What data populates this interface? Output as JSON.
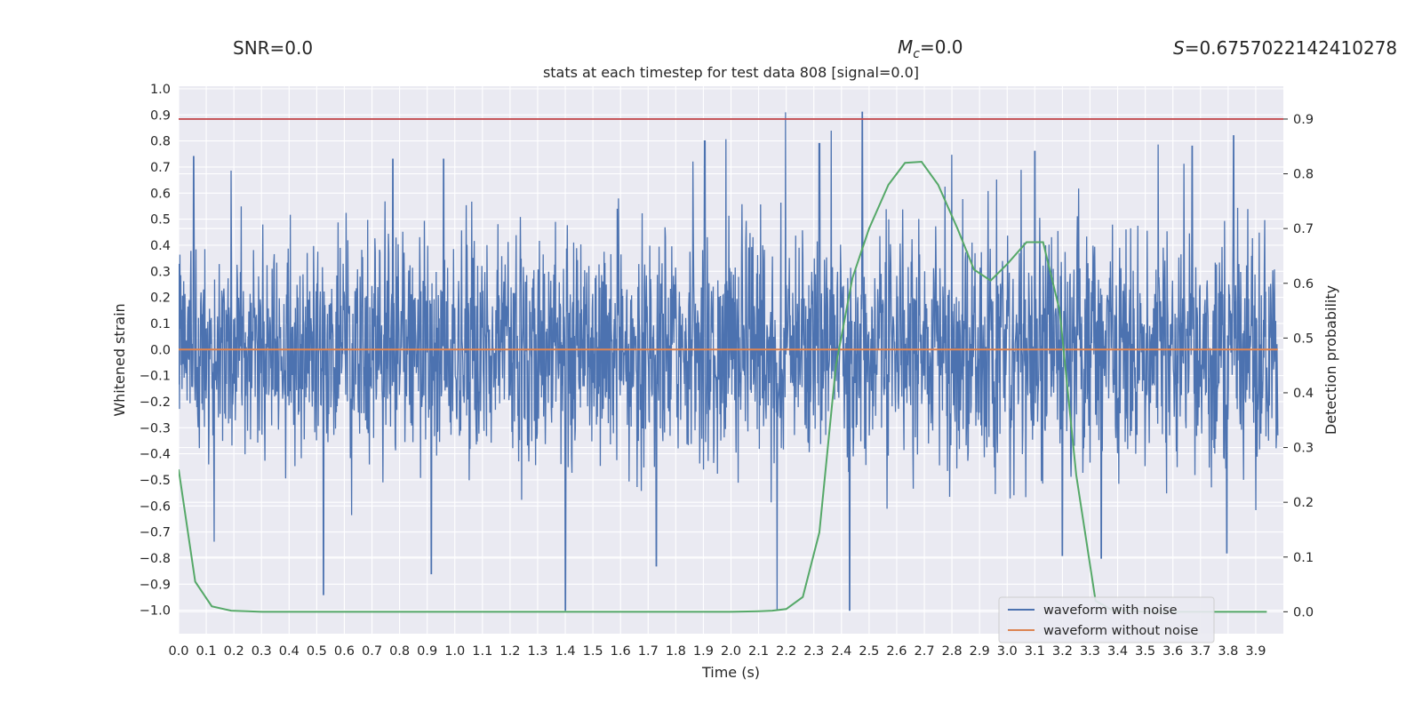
{
  "header": {
    "snr": "SNR=0.0",
    "mc_symbol": "M",
    "mc_sub": "c",
    "mc_value": "=0.0",
    "s_symbol": "S",
    "s_value": "=0.6757022142410278"
  },
  "chart_data": {
    "type": "line",
    "title": "stats at each timestep for test data 808 [signal=0.0]",
    "xlabel": "Time (s)",
    "ylabel_left": "Whitened strain",
    "ylabel_right": "Detection probability",
    "xlim": [
      0.0,
      4.0
    ],
    "ylim_left": [
      -1.09,
      1.01
    ],
    "ylim_right": [
      -0.04,
      0.96
    ],
    "xticks": [
      "0.0",
      "0.1",
      "0.2",
      "0.3",
      "0.4",
      "0.5",
      "0.6",
      "0.7",
      "0.8",
      "0.9",
      "1.0",
      "1.1",
      "1.2",
      "1.3",
      "1.4",
      "1.5",
      "1.6",
      "1.7",
      "1.8",
      "1.9",
      "2.0",
      "2.1",
      "2.2",
      "2.3",
      "2.4",
      "2.5",
      "2.6",
      "2.7",
      "2.8",
      "2.9",
      "3.0",
      "3.1",
      "3.2",
      "3.3",
      "3.4",
      "3.5",
      "3.6",
      "3.7",
      "3.8",
      "3.9"
    ],
    "yticks_left": [
      "1.0",
      "0.9",
      "0.8",
      "0.7",
      "0.6",
      "0.5",
      "0.4",
      "0.3",
      "0.2",
      "0.1",
      "0.0",
      "−0.1",
      "−0.2",
      "−0.3",
      "−0.4",
      "−0.5",
      "−0.6",
      "−0.7",
      "−0.8",
      "−0.9",
      "−1.0"
    ],
    "yticks_right": [
      "0.9",
      "0.8",
      "0.7",
      "0.6",
      "0.5",
      "0.4",
      "0.3",
      "0.2",
      "0.1",
      "0.0"
    ],
    "threshold": {
      "value": 0.9,
      "axis": "right",
      "color": "#c44e52"
    },
    "series": [
      {
        "name": "waveform with noise",
        "axis": "left",
        "color": "#4c72b0",
        "description_values": "dense whitened noise, roughly within -1.0 to 0.92",
        "peaks": [
          {
            "x": 2.475,
            "y": 0.91
          },
          {
            "x": 3.82,
            "y": 0.82
          },
          {
            "x": 1.905,
            "y": 0.8
          },
          {
            "x": 2.32,
            "y": 0.79
          },
          {
            "x": 0.055,
            "y": 0.74
          },
          {
            "x": 0.96,
            "y": 0.73
          },
          {
            "x": 0.775,
            "y": 0.73
          },
          {
            "x": 3.67,
            "y": 0.78
          },
          {
            "x": 3.1,
            "y": 0.76
          },
          {
            "x": 1.4,
            "y": -1.0
          },
          {
            "x": 2.43,
            "y": -1.0
          },
          {
            "x": 0.525,
            "y": -0.94
          },
          {
            "x": 0.915,
            "y": -0.86
          },
          {
            "x": 1.73,
            "y": -0.83
          },
          {
            "x": 3.795,
            "y": -0.78
          },
          {
            "x": 3.2,
            "y": -0.79
          },
          {
            "x": 3.34,
            "y": -0.8
          }
        ]
      },
      {
        "name": "waveform without noise",
        "axis": "left",
        "color": "#dd8452",
        "x": [
          0.0,
          3.98
        ],
        "y": [
          0.0,
          0.0
        ]
      },
      {
        "name": "detection probability",
        "axis": "right",
        "color": "#55a868",
        "x": [
          0.0,
          0.06,
          0.12,
          0.19,
          0.25,
          0.3,
          0.5,
          1.0,
          1.5,
          2.0,
          2.1,
          2.15,
          2.2,
          2.26,
          2.32,
          2.38,
          2.44,
          2.5,
          2.57,
          2.63,
          2.69,
          2.75,
          2.82,
          2.88,
          2.94,
          3.0,
          3.07,
          3.13,
          3.19,
          3.25,
          3.32,
          3.38,
          3.5,
          3.7,
          3.9,
          3.94
        ],
        "y": [
          0.26,
          0.055,
          0.01,
          0.002,
          0.001,
          0.0,
          0.0,
          0.0,
          0.0,
          0.0,
          0.001,
          0.002,
          0.005,
          0.027,
          0.145,
          0.45,
          0.61,
          0.7,
          0.78,
          0.82,
          0.822,
          0.78,
          0.7,
          0.625,
          0.605,
          0.635,
          0.675,
          0.675,
          0.55,
          0.25,
          0.02,
          0.003,
          0.0,
          0.0,
          0.0,
          0.0
        ]
      }
    ],
    "legend": {
      "position": "lower-right",
      "entries": [
        {
          "label": "waveform with noise",
          "color": "#4c72b0"
        },
        {
          "label": "waveform without noise",
          "color": "#dd8452"
        }
      ]
    },
    "style": {
      "background": "#eaeaf2",
      "grid_color": "#ffffff"
    }
  }
}
